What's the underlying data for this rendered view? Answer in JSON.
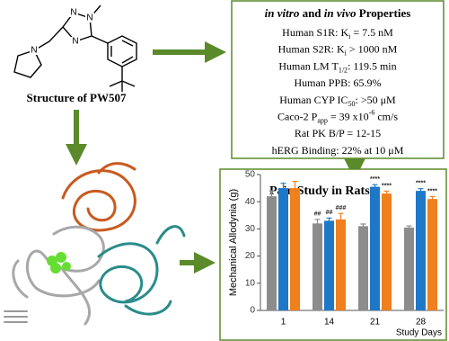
{
  "structure": {
    "caption": "Structure of PW507"
  },
  "properties": {
    "title": [
      {
        "i": "in vitro"
      },
      " and ",
      {
        "i": "in vivo"
      },
      " Properties"
    ],
    "lines": [
      [
        "Human S1R: K",
        {
          "sub": "i"
        },
        " = 7.5 nM"
      ],
      [
        "Human S2R: K",
        {
          "sub": "i"
        },
        " > 1000 nM"
      ],
      [
        "Human LM T",
        {
          "sub": "1/2"
        },
        ": 119.5 min"
      ],
      [
        "Human PPB: 65.9%"
      ],
      [
        "Human CYP IC",
        {
          "sub": "50"
        },
        ": >50 μM"
      ],
      [
        "Caco-2 P",
        {
          "sub": "app"
        },
        " = 39 x10",
        {
          "sup": "-6"
        },
        " cm/s"
      ],
      [
        "Rat PK B/P = 12-15"
      ],
      [
        "hERG Binding: 22% at 10 μM"
      ]
    ]
  },
  "chart_data": {
    "type": "bar",
    "title": "Pain Study in Rats",
    "xlabel": "Study Days",
    "ylabel": "Mechanical Allodynia (g)",
    "categories": [
      "1",
      "14",
      "21",
      "28"
    ],
    "series": [
      {
        "color": "#8c8c8c",
        "values": [
          42,
          32,
          31,
          30.5
        ],
        "errors": [
          2,
          1.5,
          0.8,
          0.6
        ],
        "labels": [
          null,
          "##",
          null,
          null
        ]
      },
      {
        "color": "#1f77c8",
        "values": [
          45,
          33,
          45.5,
          44
        ],
        "errors": [
          1.8,
          1,
          0.8,
          0.8
        ],
        "labels": [
          null,
          "##",
          "****",
          "****"
        ]
      },
      {
        "color": "#f07f1e",
        "values": [
          45,
          33.5,
          43,
          41
        ],
        "errors": [
          2.5,
          2.2,
          0.9,
          0.9
        ],
        "labels": [
          null,
          "###",
          "****",
          "****"
        ]
      }
    ],
    "ylim": [
      0,
      50
    ],
    "yticks": [
      0,
      10,
      20,
      30,
      40,
      50
    ]
  }
}
